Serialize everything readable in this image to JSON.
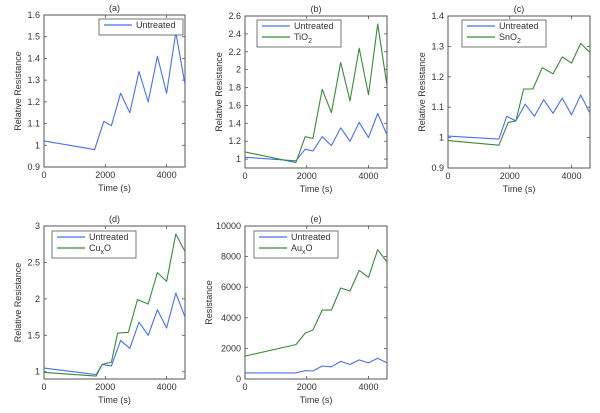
{
  "chart_data": [
    {
      "id": "a",
      "type": "line",
      "title": "(a)",
      "xlabel": "Time (s)",
      "ylabel": "Relative Resistance",
      "xlim": [
        0,
        4600
      ],
      "ylim": [
        0.9,
        1.6
      ],
      "xticks": [
        0,
        2000,
        4000
      ],
      "xtick_labels": [
        "0",
        "2000",
        "4000"
      ],
      "yticks": [
        0.9,
        1.0,
        1.1,
        1.2,
        1.3,
        1.4,
        1.5,
        1.6
      ],
      "ytick_labels": [
        "0.9",
        "1",
        "1.1",
        "1.2",
        "1.3",
        "1.4",
        "1.5",
        "1.6"
      ],
      "legend_position": "top-right",
      "series": [
        {
          "name": "Untreated",
          "color": "#4a6ff0",
          "x": [
            0,
            1650,
            1950,
            2200,
            2500,
            2800,
            3100,
            3400,
            3700,
            4000,
            4300,
            4600
          ],
          "y": [
            1.02,
            0.98,
            1.11,
            1.09,
            1.24,
            1.15,
            1.34,
            1.2,
            1.41,
            1.24,
            1.52,
            1.28
          ]
        }
      ]
    },
    {
      "id": "b",
      "type": "line",
      "title": "(b)",
      "xlabel": "Time (s)",
      "ylabel": "Relative Resistance",
      "xlim": [
        0,
        4600
      ],
      "ylim": [
        0.9,
        2.6
      ],
      "xticks": [
        0,
        2000,
        4000
      ],
      "xtick_labels": [
        "0",
        "2000",
        "4000"
      ],
      "yticks": [
        1.0,
        1.2,
        1.4,
        1.6,
        1.8,
        2.0,
        2.2,
        2.4,
        2.6
      ],
      "ytick_labels": [
        "1",
        "1.2",
        "1.4",
        "1.6",
        "1.8",
        "2",
        "2.2",
        "2.4",
        "2.6"
      ],
      "legend_position": "top-left",
      "series": [
        {
          "name": "Untreated",
          "color": "#4a6ff0",
          "x": [
            0,
            1650,
            1950,
            2200,
            2500,
            2800,
            3100,
            3400,
            3700,
            4000,
            4300,
            4600
          ],
          "y": [
            1.02,
            0.98,
            1.11,
            1.09,
            1.25,
            1.15,
            1.35,
            1.2,
            1.41,
            1.24,
            1.51,
            1.27
          ]
        },
        {
          "name": "TiO",
          "subscript": "2",
          "color": "#3a8a3a",
          "x": [
            0,
            1650,
            1950,
            2200,
            2500,
            2800,
            3100,
            3400,
            3700,
            4000,
            4300,
            4600
          ],
          "y": [
            1.08,
            0.96,
            1.25,
            1.23,
            1.78,
            1.52,
            2.08,
            1.65,
            2.24,
            1.72,
            2.51,
            1.82
          ]
        }
      ]
    },
    {
      "id": "c",
      "type": "line",
      "title": "(c)",
      "xlabel": "Time (s)",
      "ylabel": "Relative Resistance",
      "xlim": [
        0,
        4600
      ],
      "ylim": [
        0.9,
        1.4
      ],
      "xticks": [
        0,
        2000,
        4000
      ],
      "xtick_labels": [
        "0",
        "2000",
        "4000"
      ],
      "yticks": [
        0.9,
        1.0,
        1.1,
        1.2,
        1.3,
        1.4
      ],
      "ytick_labels": [
        "0.9",
        "1",
        "1.1",
        "1.2",
        "1.3",
        "1.4"
      ],
      "legend_position": "top-left",
      "series": [
        {
          "name": "Untreated",
          "color": "#4a6ff0",
          "x": [
            0,
            1650,
            1900,
            2200,
            2500,
            2800,
            3100,
            3400,
            3700,
            4000,
            4300,
            4600
          ],
          "y": [
            1.005,
            0.995,
            1.07,
            1.055,
            1.11,
            1.07,
            1.125,
            1.08,
            1.13,
            1.075,
            1.14,
            1.08
          ]
        },
        {
          "name": "SnO",
          "subscript": "2",
          "color": "#3a8a3a",
          "x": [
            0,
            1650,
            1950,
            2200,
            2450,
            2750,
            3050,
            3400,
            3700,
            4000,
            4300,
            4600
          ],
          "y": [
            0.99,
            0.975,
            1.05,
            1.055,
            1.16,
            1.16,
            1.23,
            1.21,
            1.265,
            1.245,
            1.31,
            1.28
          ]
        }
      ]
    },
    {
      "id": "d",
      "type": "line",
      "title": "(d)",
      "xlabel": "Time (s)",
      "ylabel": "Relative Resistance",
      "xlim": [
        0,
        4600
      ],
      "ylim": [
        0.9,
        3.0
      ],
      "xticks": [
        0,
        2000,
        4000
      ],
      "xtick_labels": [
        "0",
        "2000",
        "4000"
      ],
      "yticks": [
        1.0,
        1.5,
        2.0,
        2.5,
        3.0
      ],
      "ytick_labels": [
        "1",
        "1.5",
        "2",
        "2.5",
        "3"
      ],
      "legend_position": "top-left",
      "series": [
        {
          "name": "Untreated",
          "color": "#4a6ff0",
          "x": [
            0,
            1700,
            1900,
            2200,
            2500,
            2800,
            3100,
            3400,
            3700,
            4000,
            4300,
            4600
          ],
          "y": [
            1.05,
            0.96,
            1.1,
            1.08,
            1.43,
            1.32,
            1.68,
            1.5,
            1.85,
            1.6,
            2.08,
            1.75
          ]
        },
        {
          "name": "Cu",
          "subscript": "x",
          "suffix": "O",
          "color": "#3a8a3a",
          "x": [
            0,
            1700,
            1900,
            2200,
            2400,
            2750,
            3050,
            3400,
            3700,
            4000,
            4300,
            4600
          ],
          "y": [
            0.99,
            0.94,
            1.1,
            1.13,
            1.53,
            1.54,
            1.99,
            1.93,
            2.36,
            2.24,
            2.89,
            2.65
          ]
        }
      ]
    },
    {
      "id": "e",
      "type": "line",
      "title": "(e)",
      "xlabel": "Time (s)",
      "ylabel": "Resistance",
      "xlim": [
        0,
        4600
      ],
      "ylim": [
        0,
        10000
      ],
      "xticks": [
        0,
        2000,
        4000
      ],
      "xtick_labels": [
        "0",
        "2000",
        "4000"
      ],
      "yticks": [
        0,
        2000,
        4000,
        6000,
        8000,
        10000
      ],
      "ytick_labels": [
        "0",
        "2000",
        "4000",
        "6000",
        "8000",
        "10000"
      ],
      "legend_position": "top-left",
      "series": [
        {
          "name": "Untreated",
          "color": "#4a6ff0",
          "x": [
            0,
            1650,
            1950,
            2200,
            2500,
            2800,
            3100,
            3400,
            3700,
            4000,
            4300,
            4600
          ],
          "y": [
            400,
            400,
            550,
            520,
            850,
            800,
            1150,
            950,
            1250,
            1050,
            1350,
            1050
          ]
        },
        {
          "name": "Au",
          "subscript": "x",
          "suffix": "O",
          "color": "#3a8a3a",
          "x": [
            0,
            1650,
            1950,
            2200,
            2500,
            2800,
            3100,
            3400,
            3700,
            4000,
            4300,
            4600
          ],
          "y": [
            1500,
            2250,
            3000,
            3200,
            4500,
            4500,
            5950,
            5750,
            7100,
            6650,
            8450,
            7650
          ]
        }
      ]
    }
  ]
}
